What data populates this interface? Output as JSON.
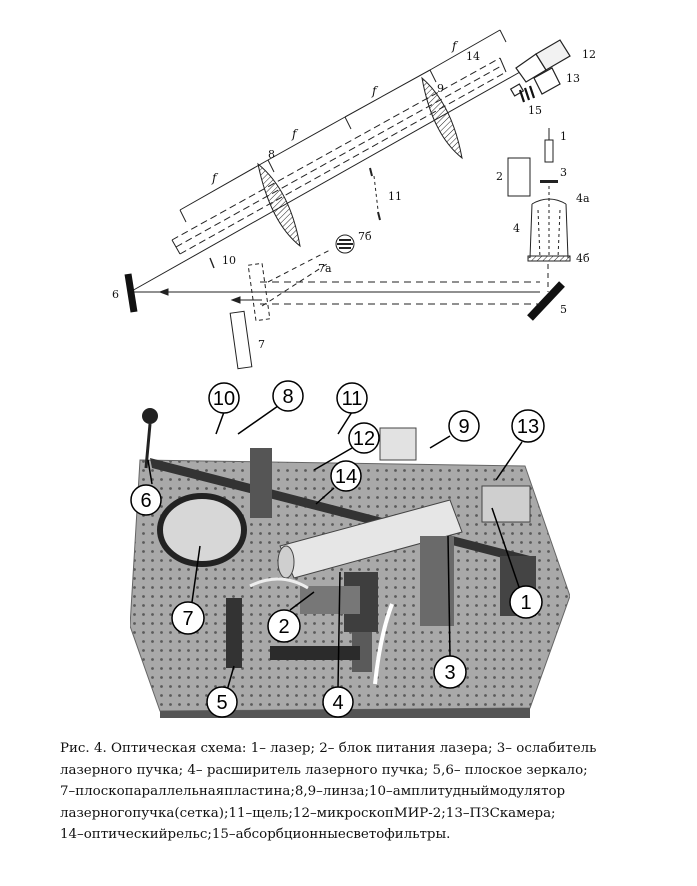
{
  "scheme": {
    "labels": {
      "n1": "1",
      "n2": "2",
      "n3": "3",
      "n4": "4",
      "n4a": "4a",
      "n4b": "4б",
      "n5": "5",
      "n6": "6",
      "n7": "7",
      "n7a": "7a",
      "n7b": "7б",
      "n8": "8",
      "n9": "9",
      "n10": "10",
      "n11": "11",
      "n12": "12",
      "n13": "13",
      "n14": "14",
      "n15": "15",
      "f": "f"
    }
  },
  "photo": {
    "callouts": [
      "1",
      "2",
      "3",
      "4",
      "5",
      "6",
      "7",
      "8",
      "9",
      "10",
      "11",
      "12",
      "13",
      "14"
    ]
  },
  "caption": {
    "lines": [
      "Рис. 4. Оптическая схема: 1– лазер; 2– блок питания лазера; 3– ослабитель",
      "лазерного пучка; 4– расширитель лазерного пучка; 5,6– плоское зеркало;",
      "7–плоскопараллельнаяпластина;8,9–линза;10–амплитудныймодулятор",
      "лазерногопучка(сетка);11–щель;12–микроскопМИР-2;13–ПЗСкамера;",
      "14–оптическийрельс;15–абсорбционныесветофильтры."
    ]
  }
}
